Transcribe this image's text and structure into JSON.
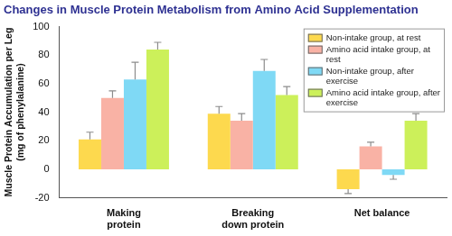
{
  "chart_data": {
    "type": "bar",
    "title": "Changes in Muscle Protein Metabolism from Amino Acid Supplementation",
    "ylabel": "Muscle Protein Accumulation per Leg (mg of phenylalanine)",
    "categories": [
      "Making protein",
      "Breaking down protein",
      "Net balance"
    ],
    "series": [
      {
        "name": "Non-intake group, at rest",
        "color": "#fdd94e",
        "values": [
          21,
          39,
          -14
        ],
        "errors": [
          5,
          5,
          3
        ]
      },
      {
        "name": "Amino acid intake group, at rest",
        "color": "#f9b2a5",
        "values": [
          50,
          34,
          16
        ],
        "errors": [
          5,
          5,
          3
        ]
      },
      {
        "name": "Non-intake group, after exercise",
        "color": "#7fd9f5",
        "values": [
          63,
          69,
          -4
        ],
        "errors": [
          12,
          8,
          3
        ]
      },
      {
        "name": "Amino acid intake group, after exercise",
        "color": "#ccf05a",
        "values": [
          84,
          52,
          34
        ],
        "errors": [
          5,
          6,
          5
        ]
      }
    ],
    "ylim": [
      -20,
      100
    ],
    "yticks": [
      -20,
      0,
      20,
      40,
      60,
      80,
      100
    ],
    "grid": false,
    "legend": "top right"
  }
}
